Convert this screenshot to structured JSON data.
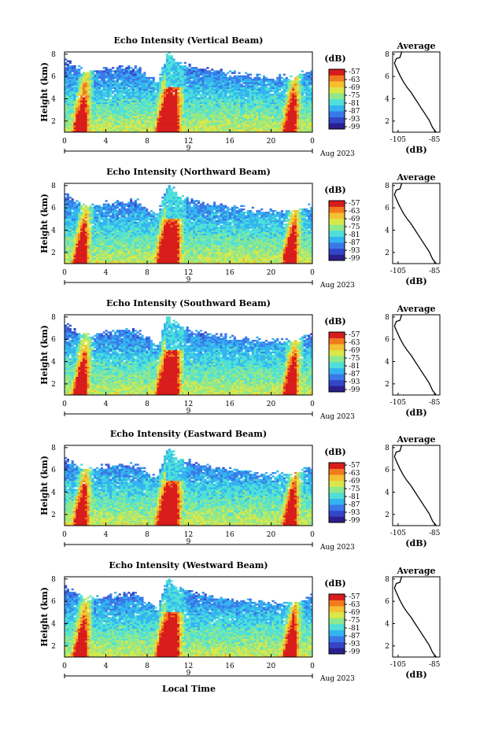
{
  "colorbar": {
    "label": "(dB)",
    "ticks": [
      "-57",
      "-63",
      "-69",
      "-75",
      "-81",
      "-87",
      "-93",
      "-99"
    ],
    "colors": [
      "#2a1f8c",
      "#3446c8",
      "#3a78e8",
      "#33b4f0",
      "#4ee0d8",
      "#8ee88e",
      "#d8e84a",
      "#f5c030",
      "#f27a1e",
      "#d81c1c"
    ]
  },
  "xaxis": {
    "ticks": [
      "0",
      "4",
      "8",
      "12",
      "16",
      "20",
      "0"
    ],
    "day_label": "9",
    "month_label": "Aug 2023",
    "title": "Local Time"
  },
  "yaxis": {
    "label": "Height (km)",
    "ticks": [
      "8",
      "6",
      "4",
      "2"
    ]
  },
  "profile": {
    "title": "Average",
    "xticks": [
      "-105",
      "-85"
    ],
    "xlabel": "(dB)",
    "yticks": [
      "8",
      "6",
      "4",
      "2"
    ]
  },
  "chart_data": [
    {
      "type": "heatmap",
      "title": "Echo Intensity (Vertical Beam)",
      "xlabel": "Local Time",
      "ylabel": "Height (km)",
      "xlim": [
        0,
        24
      ],
      "ylim": [
        1,
        8.2
      ],
      "clim": [
        -99,
        -57
      ],
      "vertical_streaks_hour": [
        1.5,
        9.5,
        10.4,
        21.8
      ],
      "white_above_km_by_hour": [
        [
          0,
          7.5
        ],
        [
          2,
          6.4
        ],
        [
          4,
          6.7
        ],
        [
          7,
          6.9
        ],
        [
          9,
          5.4
        ],
        [
          10,
          8.2
        ],
        [
          11,
          7.2
        ],
        [
          13,
          6.8
        ],
        [
          16,
          6.3
        ],
        [
          19,
          6.0
        ],
        [
          22,
          5.9
        ],
        [
          24,
          6.6
        ]
      ]
    },
    {
      "type": "line",
      "title": "Average",
      "xlabel": "(dB)",
      "ylabel": "",
      "xlim": [
        -108,
        -82
      ],
      "ylim": [
        1,
        8.2
      ],
      "x": [
        -84,
        -86,
        -88,
        -90,
        -92,
        -94,
        -96,
        -98,
        -100,
        -102,
        -104,
        -106,
        -107,
        -106,
        -104,
        -103
      ],
      "y": [
        1.0,
        1.4,
        2.1,
        2.6,
        3.1,
        3.6,
        4.1,
        4.6,
        5.0,
        5.5,
        6.1,
        6.8,
        7.2,
        7.6,
        7.7,
        8.2
      ]
    },
    {
      "type": "heatmap",
      "title": "Echo Intensity (Northward Beam)",
      "xlabel": "Local Time",
      "ylabel": "Height (km)",
      "xlim": [
        0,
        24
      ],
      "ylim": [
        1,
        8.2
      ],
      "clim": [
        -99,
        -57
      ],
      "vertical_streaks_hour": [
        1.5,
        9.5,
        10.4,
        21.8
      ],
      "white_above_km_by_hour": [
        [
          0,
          7.2
        ],
        [
          2,
          6.1
        ],
        [
          4,
          6.4
        ],
        [
          7,
          6.6
        ],
        [
          9,
          5.2
        ],
        [
          10,
          8.2
        ],
        [
          11,
          7.1
        ],
        [
          13,
          6.6
        ],
        [
          16,
          6.0
        ],
        [
          19,
          5.8
        ],
        [
          22,
          5.6
        ],
        [
          24,
          6.3
        ]
      ]
    },
    {
      "type": "line",
      "title": "Average",
      "xlabel": "(dB)",
      "ylabel": "",
      "xlim": [
        -108,
        -82
      ],
      "ylim": [
        1,
        8.2
      ],
      "x": [
        -84,
        -86,
        -88,
        -90,
        -92,
        -94,
        -96,
        -98,
        -100,
        -102,
        -104,
        -106,
        -107,
        -106,
        -104,
        -103
      ],
      "y": [
        1.0,
        1.4,
        2.1,
        2.6,
        3.1,
        3.6,
        4.1,
        4.6,
        5.0,
        5.5,
        6.1,
        6.8,
        7.2,
        7.6,
        7.7,
        8.2
      ]
    },
    {
      "type": "heatmap",
      "title": "Echo Intensity (Southward Beam)",
      "xlabel": "Local Time",
      "ylabel": "Height (km)",
      "xlim": [
        0,
        24
      ],
      "ylim": [
        1,
        8.2
      ],
      "clim": [
        -99,
        -57
      ],
      "vertical_streaks_hour": [
        1.5,
        9.5,
        10.4,
        21.8
      ],
      "white_above_km_by_hour": [
        [
          0,
          7.3
        ],
        [
          2,
          6.3
        ],
        [
          4,
          6.6
        ],
        [
          7,
          6.8
        ],
        [
          9,
          5.3
        ],
        [
          10,
          8.2
        ],
        [
          11,
          7.1
        ],
        [
          13,
          6.7
        ],
        [
          16,
          6.2
        ],
        [
          19,
          5.9
        ],
        [
          22,
          5.8
        ],
        [
          24,
          6.5
        ]
      ]
    },
    {
      "type": "line",
      "title": "Average",
      "xlabel": "(dB)",
      "ylabel": "",
      "xlim": [
        -108,
        -82
      ],
      "ylim": [
        1,
        8.2
      ],
      "x": [
        -84,
        -86,
        -88,
        -90,
        -92,
        -94,
        -96,
        -98,
        -100,
        -102,
        -104,
        -106,
        -107,
        -106,
        -104,
        -103
      ],
      "y": [
        1.0,
        1.4,
        2.1,
        2.6,
        3.1,
        3.6,
        4.1,
        4.6,
        5.0,
        5.5,
        6.1,
        6.8,
        7.2,
        7.6,
        7.7,
        8.2
      ]
    },
    {
      "type": "heatmap",
      "title": "Echo Intensity (Eastward Beam)",
      "xlabel": "Local Time",
      "ylabel": "Height (km)",
      "xlim": [
        0,
        24
      ],
      "ylim": [
        1,
        8.2
      ],
      "clim": [
        -99,
        -57
      ],
      "vertical_streaks_hour": [
        1.5,
        9.5,
        10.4,
        21.8
      ],
      "white_above_km_by_hour": [
        [
          0,
          7.1
        ],
        [
          2,
          6.0
        ],
        [
          4,
          6.3
        ],
        [
          7,
          6.5
        ],
        [
          9,
          5.2
        ],
        [
          10,
          8.2
        ],
        [
          11,
          7.0
        ],
        [
          13,
          6.5
        ],
        [
          16,
          6.0
        ],
        [
          19,
          5.7
        ],
        [
          22,
          5.5
        ],
        [
          24,
          6.2
        ]
      ]
    },
    {
      "type": "line",
      "title": "Average",
      "xlabel": "(dB)",
      "ylabel": "",
      "xlim": [
        -108,
        -82
      ],
      "ylim": [
        1,
        8.2
      ],
      "x": [
        -84,
        -86,
        -88,
        -90,
        -92,
        -94,
        -96,
        -98,
        -100,
        -102,
        -104,
        -106,
        -107,
        -106,
        -104,
        -103
      ],
      "y": [
        1.0,
        1.4,
        2.1,
        2.6,
        3.1,
        3.6,
        4.1,
        4.6,
        5.0,
        5.5,
        6.1,
        6.8,
        7.2,
        7.6,
        7.7,
        8.2
      ]
    },
    {
      "type": "heatmap",
      "title": "Echo Intensity (Westward Beam)",
      "xlabel": "Local Time",
      "ylabel": "Height (km)",
      "xlim": [
        0,
        24
      ],
      "ylim": [
        1,
        8.2
      ],
      "clim": [
        -99,
        -57
      ],
      "vertical_streaks_hour": [
        1.5,
        9.5,
        10.4,
        21.8
      ],
      "white_above_km_by_hour": [
        [
          0,
          7.4
        ],
        [
          2,
          6.2
        ],
        [
          4,
          6.5
        ],
        [
          7,
          6.7
        ],
        [
          9,
          5.3
        ],
        [
          10,
          8.2
        ],
        [
          11,
          7.1
        ],
        [
          13,
          6.7
        ],
        [
          16,
          6.1
        ],
        [
          19,
          5.9
        ],
        [
          22,
          5.7
        ],
        [
          24,
          6.6
        ]
      ]
    },
    {
      "type": "line",
      "title": "Average",
      "xlabel": "(dB)",
      "ylabel": "",
      "xlim": [
        -108,
        -82
      ],
      "ylim": [
        1,
        8.2
      ],
      "x": [
        -84,
        -86,
        -88,
        -90,
        -92,
        -94,
        -96,
        -98,
        -100,
        -102,
        -104,
        -106,
        -107,
        -106,
        -104,
        -103
      ],
      "y": [
        1.0,
        1.4,
        2.1,
        2.6,
        3.1,
        3.6,
        4.1,
        4.6,
        5.0,
        5.5,
        6.1,
        6.8,
        7.2,
        7.6,
        7.7,
        8.2
      ]
    }
  ]
}
